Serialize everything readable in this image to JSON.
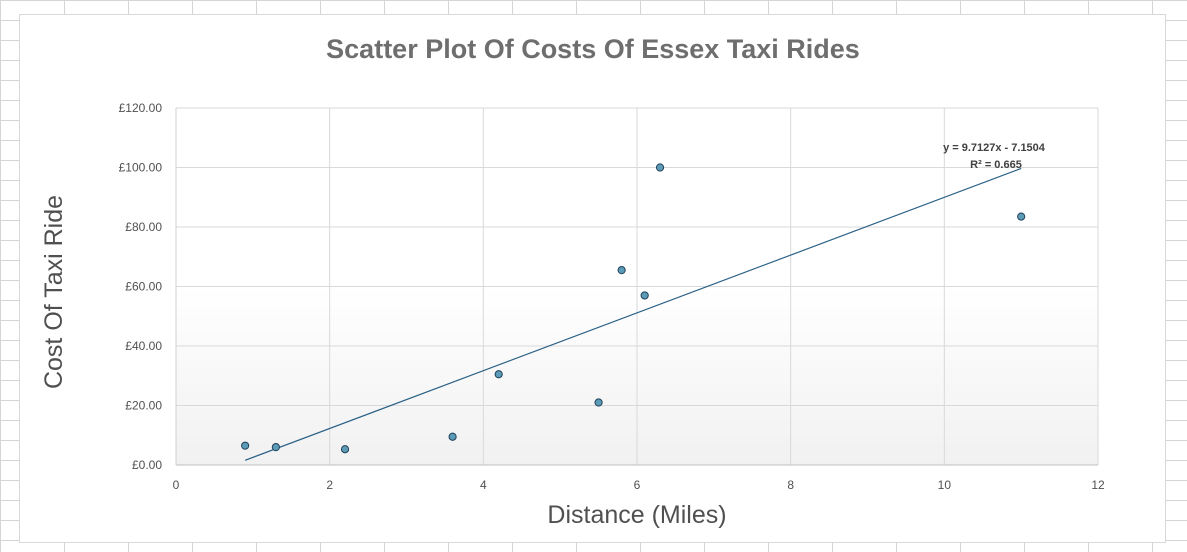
{
  "chart_data": {
    "type": "scatter",
    "title": "Scatter Plot Of Costs Of Essex Taxi Rides",
    "xlabel": "Distance (Miles)",
    "ylabel": "Cost Of Taxi Ride",
    "xlim": [
      0,
      12
    ],
    "ylim": [
      0,
      120
    ],
    "x_ticks": [
      0,
      2,
      4,
      6,
      8,
      10,
      12
    ],
    "x_tick_labels": [
      "0",
      "2",
      "4",
      "6",
      "8",
      "10",
      "12"
    ],
    "y_ticks": [
      0,
      20,
      40,
      60,
      80,
      100,
      120
    ],
    "y_tick_labels": [
      "£0.00",
      "£20.00",
      "£40.00",
      "£60.00",
      "£80.00",
      "£100.00",
      "£120.00"
    ],
    "grid": true,
    "legend": "none",
    "series": [
      {
        "points": [
          {
            "x": 0.9,
            "y": 6.5
          },
          {
            "x": 1.3,
            "y": 6.0
          },
          {
            "x": 2.2,
            "y": 5.3
          },
          {
            "x": 3.6,
            "y": 9.5
          },
          {
            "x": 4.2,
            "y": 30.5
          },
          {
            "x": 5.5,
            "y": 21.0
          },
          {
            "x": 5.8,
            "y": 65.5
          },
          {
            "x": 6.1,
            "y": 57.0
          },
          {
            "x": 6.3,
            "y": 100.0
          },
          {
            "x": 11.0,
            "y": 83.5
          }
        ],
        "marker_color": "#5b9bb5",
        "marker_edge": "#1f3f5a"
      }
    ],
    "trendline": {
      "type": "linear",
      "slope": 9.7127,
      "intercept": -7.1504,
      "x_range": [
        0.9,
        11.0
      ],
      "color": "#2b6187",
      "equation_label": "y = 9.7127x - 7.1504",
      "r2_label": "R² = 0.665"
    }
  }
}
